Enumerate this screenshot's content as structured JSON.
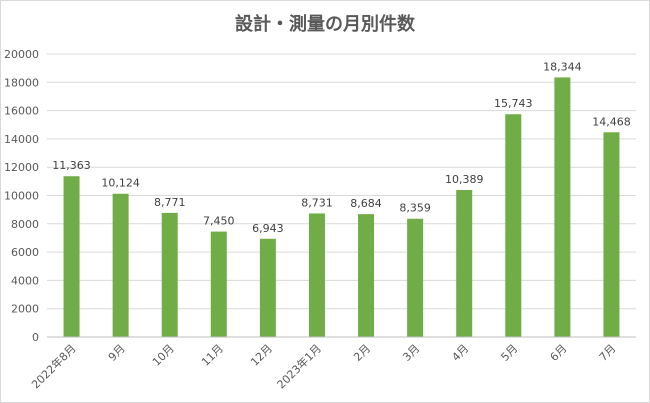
{
  "chart_data": {
    "type": "bar",
    "title": "設計・測量の月別件数",
    "categories": [
      "2022年8月",
      "9月",
      "10月",
      "11月",
      "12月",
      "2023年1月",
      "2月",
      "3月",
      "4月",
      "5月",
      "6月",
      "7月"
    ],
    "values": [
      11363,
      10124,
      8771,
      7450,
      6943,
      8731,
      8684,
      8359,
      10389,
      15743,
      18344,
      14468
    ],
    "data_labels": [
      "11,363",
      "10,124",
      "8,771",
      "7,450",
      "6,943",
      "8,731",
      "8,684",
      "8,359",
      "10,389",
      "15,743",
      "18,344",
      "14,468"
    ],
    "y_ticks": [
      "0",
      "2000",
      "4000",
      "6000",
      "8000",
      "10000",
      "12000",
      "14000",
      "16000",
      "18000",
      "20000"
    ],
    "ylim": [
      0,
      20000
    ],
    "xlabel": "",
    "ylabel": "",
    "grid": true,
    "legend": "none",
    "bar_color": "#70AD47",
    "grid_color": "#D9D9D9"
  }
}
